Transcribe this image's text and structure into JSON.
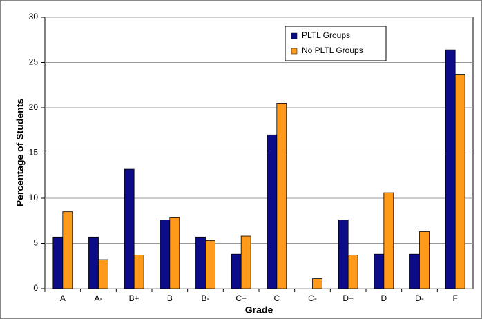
{
  "chart_data": {
    "type": "bar",
    "x_label": "Grade",
    "y_label": "Percentage of Students",
    "categories": [
      "A",
      "A-",
      "B+",
      "B",
      "B-",
      "C+",
      "C",
      "C-",
      "D+",
      "D",
      "D-",
      "F"
    ],
    "series": [
      {
        "name": "PLTL Groups",
        "color": "#0c0c88",
        "values": [
          5.7,
          5.7,
          13.2,
          7.6,
          5.7,
          3.8,
          17.0,
          0,
          7.6,
          3.8,
          3.8,
          26.4
        ]
      },
      {
        "name": "No PLTL Groups",
        "color": "#ff9a1a",
        "values": [
          8.5,
          3.2,
          3.7,
          7.9,
          5.3,
          5.8,
          20.5,
          1.1,
          3.7,
          10.6,
          6.3,
          23.7
        ]
      }
    ],
    "ylim": [
      0,
      30
    ],
    "yticks": [
      0,
      5,
      10,
      15,
      20,
      25,
      30
    ],
    "grid": true,
    "legend_position": "upper right"
  }
}
